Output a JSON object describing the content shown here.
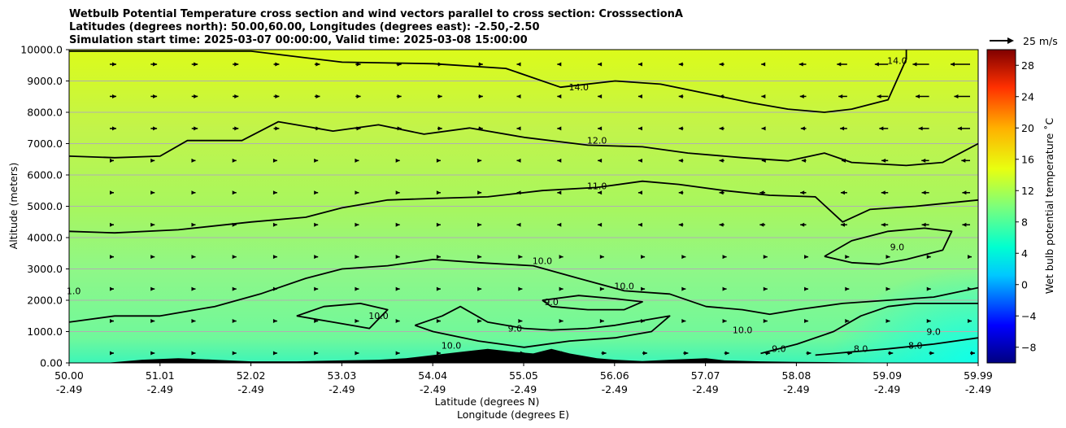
{
  "chart_data": {
    "type": "heatmap",
    "title_lines": [
      "Wetbulb Potential Temperature cross section and wind vectors parallel to cross section: CrosssectionA",
      "Latitudes (degrees north): 50.00,60.00, Longitudes (degrees east): -2.50,-2.50",
      "Simulation start time: 2025-03-07 00:00:00, Valid time: 2025-03-08 15:00:00"
    ],
    "xlabel": "Latitude (degrees N)",
    "xlabel2": "Longitude (degrees E)",
    "ylabel": "Altitude (meters)",
    "xlim": [
      50.0,
      59.99
    ],
    "ylim": [
      0,
      10000
    ],
    "x_ticks": [
      {
        "lat": "50.00",
        "lon": "-2.49"
      },
      {
        "lat": "51.01",
        "lon": "-2.49"
      },
      {
        "lat": "52.02",
        "lon": "-2.49"
      },
      {
        "lat": "53.03",
        "lon": "-2.49"
      },
      {
        "lat": "54.04",
        "lon": "-2.49"
      },
      {
        "lat": "55.05",
        "lon": "-2.49"
      },
      {
        "lat": "56.06",
        "lon": "-2.49"
      },
      {
        "lat": "57.07",
        "lon": "-2.49"
      },
      {
        "lat": "58.08",
        "lon": "-2.49"
      },
      {
        "lat": "59.09",
        "lon": "-2.49"
      },
      {
        "lat": "59.99",
        "lon": "-2.49"
      }
    ],
    "y_ticks": [
      "0.00",
      "1000.0",
      "2000.0",
      "3000.0",
      "4000.0",
      "5000.0",
      "6000.0",
      "7000.0",
      "8000.0",
      "9000.0",
      "10000.0"
    ],
    "colorbar": {
      "label": "Wet bulb potential temperature ˚C",
      "range": [
        -10,
        30
      ],
      "ticks": [
        "−8",
        "−4",
        "0",
        "4",
        "8",
        "12",
        "16",
        "20",
        "24",
        "28"
      ]
    },
    "wind_reference": "25 m/s",
    "contour_labels": [
      {
        "text": "14.0",
        "lat": 55.6,
        "alt": 8700
      },
      {
        "text": "14.0",
        "lat": 59.1,
        "alt": 9550
      },
      {
        "text": "12.0",
        "lat": 55.8,
        "alt": 7000
      },
      {
        "text": "11.0",
        "lat": 55.8,
        "alt": 5550
      },
      {
        "text": "10.0",
        "lat": 55.2,
        "alt": 3150
      },
      {
        "text": "10.0",
        "lat": 56.1,
        "alt": 2350
      },
      {
        "text": "10.0",
        "lat": 57.4,
        "alt": 950
      },
      {
        "text": "10.0",
        "lat": 53.4,
        "alt": 1400
      },
      {
        "text": "10.0",
        "lat": 54.2,
        "alt": 450
      },
      {
        "text": "9.0",
        "lat": 55.3,
        "alt": 1850
      },
      {
        "text": "9.0",
        "lat": 54.9,
        "alt": 1000
      },
      {
        "text": "9.0",
        "lat": 59.1,
        "alt": 3600
      },
      {
        "text": "9.0",
        "lat": 59.5,
        "alt": 900
      },
      {
        "text": "9.0",
        "lat": 57.8,
        "alt": 350
      },
      {
        "text": "8.0",
        "lat": 58.7,
        "alt": 350
      },
      {
        "text": "8.0",
        "lat": 59.3,
        "alt": 450
      },
      {
        "text": "1.0",
        "lat": 50.05,
        "alt": 2200
      }
    ],
    "contours": [
      {
        "level": "14.0",
        "points": [
          [
            50,
            9950
          ],
          [
            52.0,
            9950
          ],
          [
            53,
            9600
          ],
          [
            54,
            9550
          ],
          [
            54.8,
            9400
          ],
          [
            55.4,
            8800
          ],
          [
            56,
            9000
          ],
          [
            56.5,
            8900
          ],
          [
            57,
            8600
          ],
          [
            57.5,
            8300
          ],
          [
            57.9,
            8100
          ],
          [
            58.3,
            8000
          ],
          [
            58.6,
            8100
          ],
          [
            59.0,
            8400
          ],
          [
            59.2,
            9700
          ],
          [
            59.2,
            10000
          ]
        ]
      },
      {
        "level": "12.0",
        "points": [
          [
            50,
            6600
          ],
          [
            50.5,
            6550
          ],
          [
            51,
            6600
          ],
          [
            51.3,
            7100
          ],
          [
            51.9,
            7100
          ],
          [
            52.3,
            7700
          ],
          [
            52.9,
            7400
          ],
          [
            53.4,
            7600
          ],
          [
            53.9,
            7300
          ],
          [
            54.4,
            7500
          ],
          [
            55,
            7200
          ],
          [
            55.7,
            6950
          ],
          [
            56.3,
            6900
          ],
          [
            56.8,
            6700
          ],
          [
            57.4,
            6550
          ],
          [
            57.9,
            6450
          ],
          [
            58.3,
            6700
          ],
          [
            58.6,
            6400
          ],
          [
            59.2,
            6300
          ],
          [
            59.6,
            6400
          ],
          [
            59.99,
            7000
          ]
        ]
      },
      {
        "level": "11.0",
        "points": [
          [
            50,
            4200
          ],
          [
            50.5,
            4150
          ],
          [
            51.2,
            4250
          ],
          [
            52.0,
            4500
          ],
          [
            52.6,
            4650
          ],
          [
            53,
            4950
          ],
          [
            53.5,
            5200
          ],
          [
            54,
            5250
          ],
          [
            54.6,
            5300
          ],
          [
            55.2,
            5500
          ],
          [
            55.8,
            5600
          ],
          [
            56.3,
            5800
          ],
          [
            56.7,
            5700
          ],
          [
            57.2,
            5500
          ],
          [
            57.7,
            5350
          ],
          [
            58.2,
            5300
          ],
          [
            58.5,
            4500
          ],
          [
            58.8,
            4900
          ],
          [
            59.3,
            5000
          ],
          [
            59.99,
            5200
          ]
        ]
      },
      {
        "level": "10.0",
        "points": [
          [
            50,
            1300
          ],
          [
            50.5,
            1500
          ],
          [
            51,
            1500
          ],
          [
            51.6,
            1800
          ],
          [
            52.1,
            2200
          ],
          [
            52.6,
            2700
          ],
          [
            53.0,
            3000
          ],
          [
            53.5,
            3100
          ],
          [
            54,
            3300
          ],
          [
            54.5,
            3200
          ],
          [
            55.1,
            3100
          ],
          [
            55.6,
            2700
          ],
          [
            56.1,
            2300
          ],
          [
            56.6,
            2200
          ],
          [
            57.0,
            1800
          ],
          [
            57.4,
            1700
          ],
          [
            57.7,
            1550
          ],
          [
            58,
            1700
          ],
          [
            58.5,
            1900
          ],
          [
            59.0,
            2000
          ],
          [
            59.5,
            2100
          ],
          [
            59.99,
            2400
          ]
        ]
      },
      {
        "level": "10.0b",
        "points": [
          [
            52.5,
            1500
          ],
          [
            52.9,
            1300
          ],
          [
            53.3,
            1100
          ],
          [
            53.5,
            1700
          ],
          [
            53.2,
            1900
          ],
          [
            52.8,
            1800
          ],
          [
            52.5,
            1500
          ]
        ]
      },
      {
        "level": "9.0",
        "points": [
          [
            53.8,
            1200
          ],
          [
            54.1,
            1500
          ],
          [
            54.3,
            1800
          ],
          [
            54.6,
            1300
          ],
          [
            55.0,
            1100
          ],
          [
            55.3,
            1050
          ],
          [
            55.7,
            1100
          ],
          [
            56.0,
            1200
          ],
          [
            56.3,
            1350
          ],
          [
            56.6,
            1500
          ],
          [
            56.4,
            1000
          ],
          [
            56.0,
            800
          ],
          [
            55.5,
            700
          ],
          [
            55.0,
            500
          ],
          [
            54.5,
            700
          ],
          [
            54.0,
            1000
          ],
          [
            53.8,
            1200
          ]
        ]
      },
      {
        "level": "9.0b",
        "points": [
          [
            55.2,
            2000
          ],
          [
            55.6,
            2150
          ],
          [
            56.0,
            2050
          ],
          [
            56.3,
            1950
          ],
          [
            56.1,
            1700
          ],
          [
            55.7,
            1700
          ],
          [
            55.3,
            1800
          ],
          [
            55.2,
            2000
          ]
        ]
      },
      {
        "level": "9.0c",
        "points": [
          [
            58.3,
            3400
          ],
          [
            58.6,
            3900
          ],
          [
            59.0,
            4200
          ],
          [
            59.4,
            4300
          ],
          [
            59.7,
            4200
          ],
          [
            59.6,
            3600
          ],
          [
            59.2,
            3300
          ],
          [
            58.9,
            3150
          ],
          [
            58.6,
            3200
          ],
          [
            58.3,
            3400
          ]
        ]
      },
      {
        "level": "9.0d",
        "points": [
          [
            57.6,
            300
          ],
          [
            58.0,
            600
          ],
          [
            58.4,
            1000
          ],
          [
            58.7,
            1500
          ],
          [
            59.0,
            1800
          ],
          [
            59.3,
            1900
          ],
          [
            59.6,
            1900
          ],
          [
            59.99,
            1900
          ]
        ]
      },
      {
        "level": "8.0",
        "points": [
          [
            58.2,
            250
          ],
          [
            58.6,
            350
          ],
          [
            59.0,
            450
          ],
          [
            59.5,
            600
          ],
          [
            59.99,
            800
          ]
        ]
      }
    ],
    "terrain": [
      [
        50,
        0
      ],
      [
        50.4,
        0
      ],
      [
        50.8,
        100
      ],
      [
        51.2,
        150
      ],
      [
        51.6,
        100
      ],
      [
        52,
        50
      ],
      [
        52.5,
        50
      ],
      [
        53.0,
        80
      ],
      [
        53.4,
        100
      ],
      [
        53.7,
        150
      ],
      [
        54.0,
        250
      ],
      [
        54.3,
        350
      ],
      [
        54.6,
        450
      ],
      [
        54.9,
        350
      ],
      [
        55.1,
        300
      ],
      [
        55.3,
        450
      ],
      [
        55.5,
        300
      ],
      [
        55.8,
        150
      ],
      [
        56.0,
        100
      ],
      [
        56.3,
        60
      ],
      [
        56.6,
        100
      ],
      [
        57.0,
        150
      ],
      [
        57.2,
        80
      ],
      [
        57.6,
        50
      ],
      [
        58.0,
        30
      ],
      [
        58.5,
        20
      ],
      [
        59.0,
        10
      ],
      [
        59.99,
        0
      ]
    ]
  }
}
